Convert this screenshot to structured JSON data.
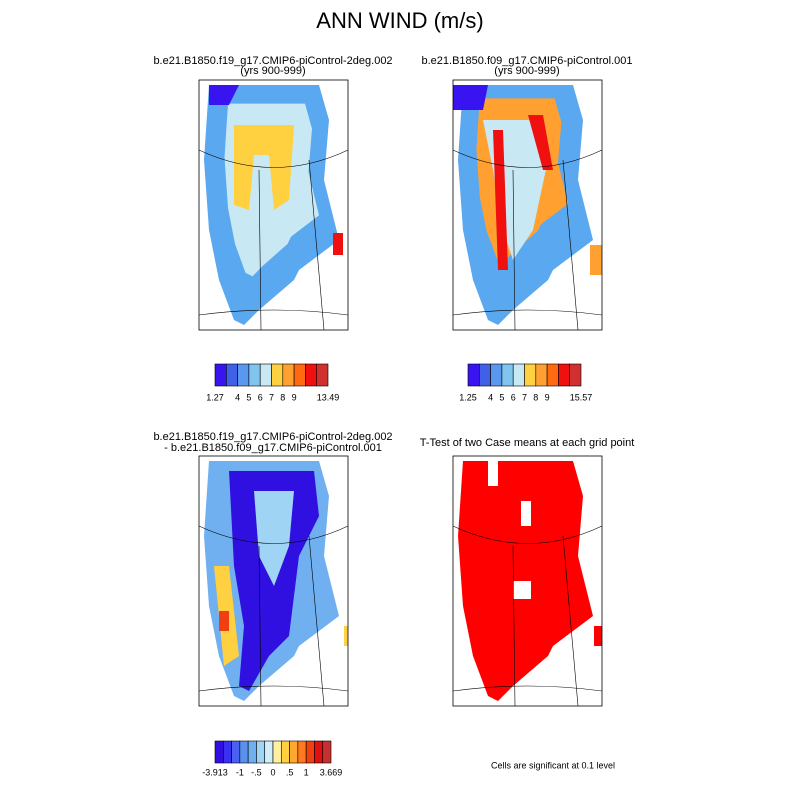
{
  "title": "ANN WIND (m/s)",
  "panels": [
    {
      "title": "b.e21.B1850.f19_g17.CMIP6-piControl-2deg.002",
      "subtitle": "(yrs 900-999)",
      "colorbar": {
        "colors": [
          "#3a14f0",
          "#4060e8",
          "#5a98f0",
          "#80c4f0",
          "#c8e8f4",
          "#ffd040",
          "#ffa030",
          "#ff6a10",
          "#f01010",
          "#d03030"
        ],
        "labels": [
          "1.27",
          "4",
          "5",
          "6",
          "7",
          "8",
          "9",
          "13.49"
        ]
      }
    },
    {
      "title": "b.e21.B1850.f09_g17.CMIP6-piControl.001",
      "subtitle": "(yrs 900-999)",
      "colorbar": {
        "colors": [
          "#3a14f0",
          "#4060e8",
          "#5a98f0",
          "#80c4f0",
          "#c8e8f4",
          "#ffd040",
          "#ffa030",
          "#ff6a10",
          "#f01010",
          "#d03030"
        ],
        "labels": [
          "1.25",
          "4",
          "5",
          "6",
          "7",
          "8",
          "9",
          "15.57"
        ]
      }
    },
    {
      "title": "b.e21.B1850.f19_g17.CMIP6-piControl-2deg.002",
      "subtitle": "- b.e21.B1850.f09_g17.CMIP6-piControl.001",
      "colorbar": {
        "colors": [
          "#3010e0",
          "#3a30f0",
          "#4a60f0",
          "#5a90f0",
          "#70b0f0",
          "#a0d4f4",
          "#d0eef8",
          "#fff0a0",
          "#ffd040",
          "#ffa830",
          "#ff7a20",
          "#f04010",
          "#e01010",
          "#c83030"
        ],
        "labels": [
          "-3.913",
          "-1",
          "-.5",
          "0",
          ".5",
          "1",
          "3.669"
        ]
      }
    },
    {
      "title": "T-Test of two Case means at each grid point",
      "note": "Cells are significant at 0.1 level"
    }
  ]
}
